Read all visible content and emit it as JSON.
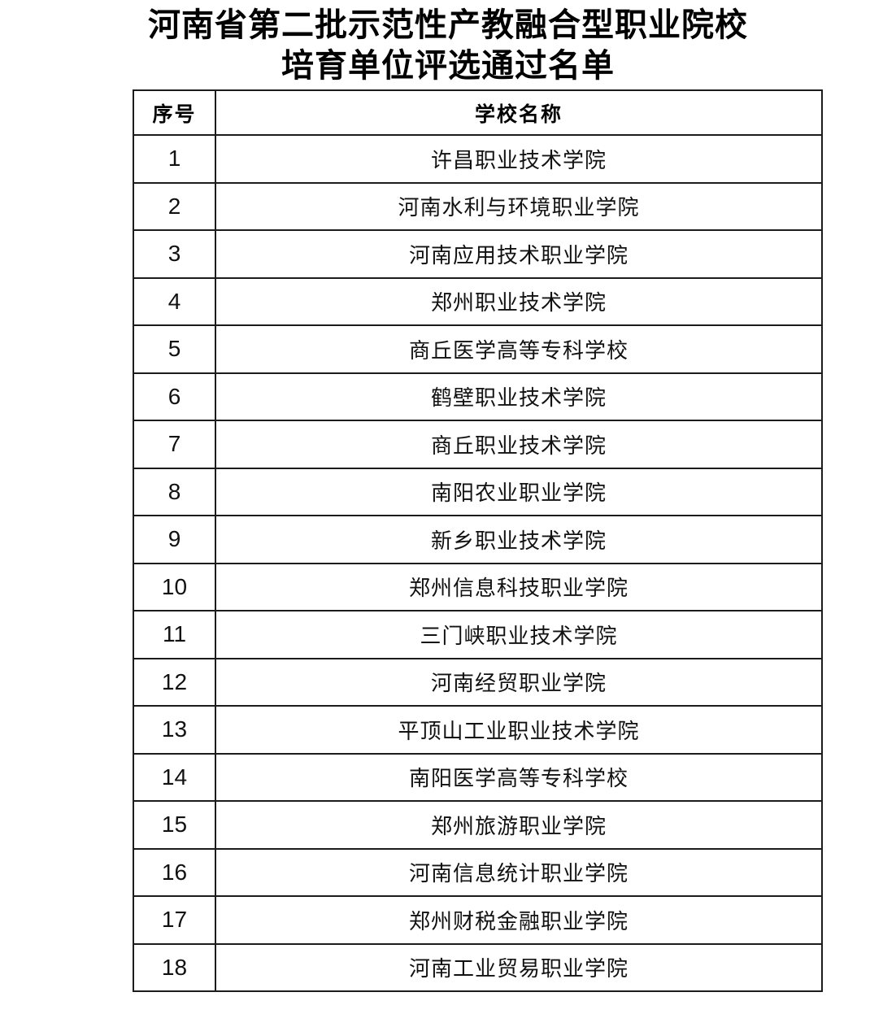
{
  "title": {
    "line1": "河南省第二批示范性产教融合型职业院校",
    "line2": "培育单位评选通过名单"
  },
  "table": {
    "header": {
      "index": "序号",
      "school": "学校名称"
    },
    "rows": [
      {
        "num": "1",
        "name": "许昌职业技术学院"
      },
      {
        "num": "2",
        "name": "河南水利与环境职业学院"
      },
      {
        "num": "3",
        "name": "河南应用技术职业学院"
      },
      {
        "num": "4",
        "name": "郑州职业技术学院"
      },
      {
        "num": "5",
        "name": "商丘医学高等专科学校"
      },
      {
        "num": "6",
        "name": "鹤壁职业技术学院"
      },
      {
        "num": "7",
        "name": "商丘职业技术学院"
      },
      {
        "num": "8",
        "name": "南阳农业职业学院"
      },
      {
        "num": "9",
        "name": "新乡职业技术学院"
      },
      {
        "num": "10",
        "name": "郑州信息科技职业学院"
      },
      {
        "num": "11",
        "name": "三门峡职业技术学院"
      },
      {
        "num": "12",
        "name": "河南经贸职业学院"
      },
      {
        "num": "13",
        "name": "平顶山工业职业技术学院"
      },
      {
        "num": "14",
        "name": "南阳医学高等专科学校"
      },
      {
        "num": "15",
        "name": "郑州旅游职业学院"
      },
      {
        "num": "16",
        "name": "河南信息统计职业学院"
      },
      {
        "num": "17",
        "name": "郑州财税金融职业学院"
      },
      {
        "num": "18",
        "name": "河南工业贸易职业学院"
      }
    ]
  }
}
